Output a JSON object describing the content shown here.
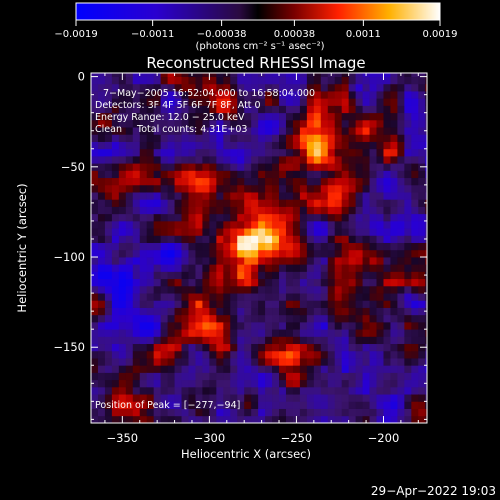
{
  "chart_data": {
    "type": "heatmap",
    "title": "Reconstructed RHESSI Image",
    "xlabel": "Heliocentric X (arcsec)",
    "ylabel": "Heliocentric Y (arcsec)",
    "xlim": [
      -368,
      -175
    ],
    "ylim": [
      -192,
      2
    ],
    "x_ticks": [
      -350,
      -300,
      -250,
      -200
    ],
    "y_ticks": [
      0,
      -50,
      -100,
      -150
    ],
    "x_tick_labels": [
      "−350",
      "−300",
      "−250",
      "−200"
    ],
    "y_tick_labels": [
      "0",
      "−50",
      "−100",
      "−150"
    ],
    "colorbar": {
      "min": -0.0019,
      "max": 0.0019,
      "tick_labels": [
        "−0.0019",
        "−0.0011",
        "−0.00038",
        "0.00038",
        "0.0011",
        "0.0019"
      ],
      "tick_values": [
        -0.0019,
        -0.0011,
        -0.00038,
        0.00038,
        0.0011,
        0.0019
      ],
      "unit_label": "(photons cm⁻² s⁻¹ asec⁻²)"
    },
    "annotations": [
      "7−May−2005 16:52:04.000 to 16:58:04.000",
      "Detectors: 3F 4F 5F 6F 7F 8F, Att 0",
      "Energy Range: 12.0 − 25.0 keV",
      "Clean     Total counts: 4.31E+03"
    ],
    "peak_label": "Position of Peak = [−277,−94]",
    "peak": [
      -277,
      -94
    ],
    "grid": false
  },
  "footer": {
    "timestamp": "29−Apr−2022 19:03"
  }
}
